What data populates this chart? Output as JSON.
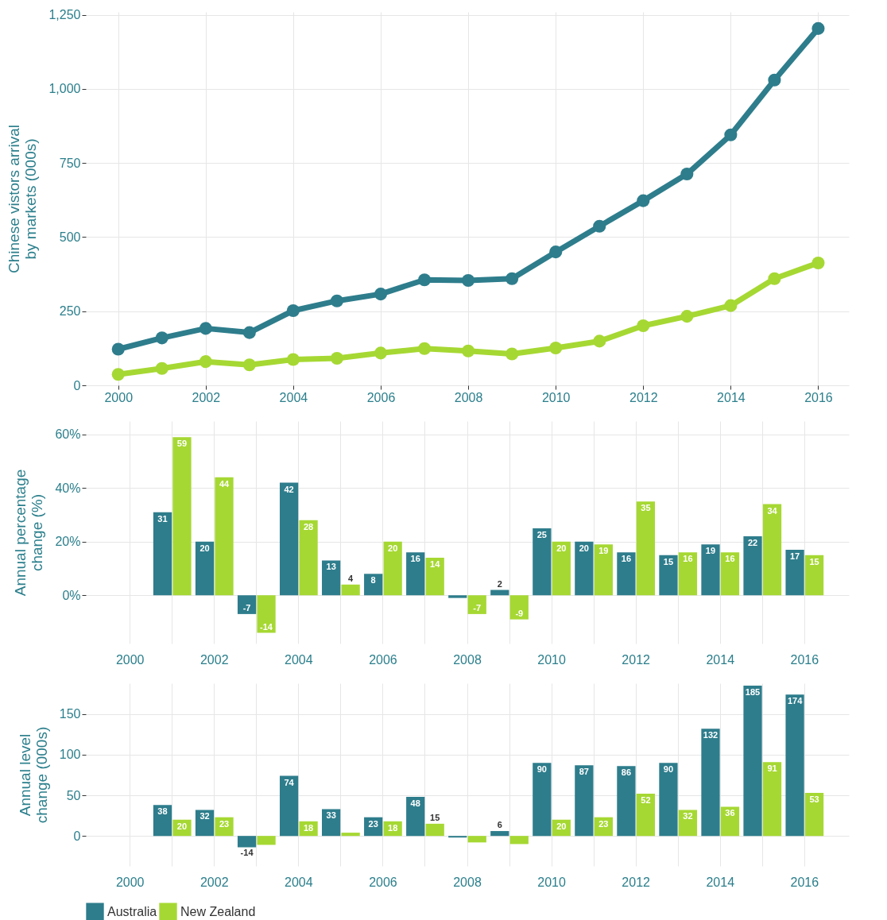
{
  "chart_data": [
    {
      "type": "line",
      "ylabel": "Chinese vistors arrival\nby markets (000s)",
      "x": [
        2000,
        2001,
        2002,
        2003,
        2004,
        2005,
        2006,
        2007,
        2008,
        2009,
        2010,
        2011,
        2012,
        2013,
        2014,
        2015,
        2016
      ],
      "series": [
        {
          "name": "Australia",
          "color": "#2e7d8c",
          "values": [
            122,
            160,
            192,
            178,
            252,
            285,
            308,
            356,
            354,
            360,
            450,
            537,
            623,
            713,
            845,
            1030,
            1204
          ]
        },
        {
          "name": "New Zealand",
          "color": "#a6d833",
          "values": [
            37,
            57,
            80,
            69,
            87,
            91,
            109,
            124,
            116,
            106,
            126,
            149,
            201,
            233,
            269,
            360,
            413
          ]
        }
      ],
      "xlim": [
        1999.26,
        2016.7
      ],
      "xticks": [
        2000,
        2002,
        2004,
        2006,
        2008,
        2010,
        2012,
        2014,
        2016
      ],
      "ylim": [
        0,
        1260
      ],
      "yticks": [
        0,
        {
          "value": 250,
          "label": "250"
        },
        {
          "value": 500,
          "label": "500"
        },
        {
          "value": 750,
          "label": "750"
        },
        {
          "value": 1000,
          "label": "1,000"
        },
        {
          "value": 1250,
          "label": "1,250"
        }
      ],
      "grid": true,
      "marker": "circle",
      "line_style": "solid",
      "legend": "bottom"
    },
    {
      "type": "bar",
      "ylabel": "Annual percentage\nchange (%)",
      "categories": [
        "2000",
        null,
        "2002",
        null,
        "2004",
        null,
        "2006",
        null,
        "2008",
        null,
        "2010",
        null,
        "2012",
        null,
        "2014",
        null,
        "2016"
      ],
      "series": [
        {
          "name": "Australia",
          "color": "#2e7d8c",
          "values": [
            null,
            31,
            20,
            -7,
            42,
            13,
            8,
            16,
            -1,
            2,
            25,
            20,
            16,
            15,
            19,
            22,
            17
          ],
          "value_labels": [
            null,
            "31",
            "20",
            "-7",
            "42",
            "13",
            "8",
            "16",
            null,
            "2",
            "25",
            "20",
            "16",
            "15",
            "19",
            "22",
            "17"
          ]
        },
        {
          "name": "New Zealand",
          "color": "#a6d833",
          "values": [
            null,
            59,
            44,
            -14,
            28,
            4,
            20,
            14,
            -7,
            -9,
            20,
            19,
            35,
            16,
            16,
            34,
            15
          ],
          "value_labels": [
            null,
            "59",
            "44",
            "-14",
            "28",
            "4",
            "20",
            "14",
            "-7",
            "-9",
            "20",
            "19",
            "35",
            "16",
            "16",
            "34",
            "15"
          ]
        }
      ],
      "ylim": [
        -18,
        65
      ],
      "yticks": [
        {
          "value": 0,
          "label": "0%"
        },
        {
          "value": 20,
          "label": "20%"
        },
        {
          "value": 40,
          "label": "40%"
        },
        {
          "value": 60,
          "label": "60%"
        }
      ],
      "grid": true,
      "legend": "bottom"
    },
    {
      "type": "bar",
      "ylabel": "Annual level\nchange (000s)",
      "categories": [
        "2000",
        null,
        "2002",
        null,
        "2004",
        null,
        "2006",
        null,
        "2008",
        null,
        "2010",
        null,
        "2012",
        null,
        "2014",
        null,
        "2016"
      ],
      "series": [
        {
          "name": "Australia",
          "color": "#2e7d8c",
          "values": [
            null,
            38,
            32,
            -14,
            74,
            33,
            23,
            48,
            -2,
            6,
            90,
            87,
            86,
            90,
            132,
            185,
            174
          ],
          "value_labels": [
            null,
            "38",
            "32",
            "-14",
            "74",
            "33",
            "23",
            "48",
            null,
            "6",
            "90",
            "87",
            "86",
            "90",
            "132",
            "185",
            "174"
          ]
        },
        {
          "name": "New Zealand",
          "color": "#a6d833",
          "values": [
            null,
            20,
            23,
            -11,
            18,
            4,
            18,
            15,
            -8,
            -10,
            20,
            23,
            52,
            32,
            36,
            91,
            53
          ],
          "value_labels": [
            null,
            "20",
            "23",
            null,
            "18",
            null,
            "18",
            "15",
            null,
            null,
            "20",
            "23",
            "52",
            "32",
            "36",
            "91",
            "53"
          ]
        }
      ],
      "ylim": [
        -37,
        188
      ],
      "yticks": [
        0,
        50,
        100,
        150
      ],
      "grid": true,
      "legend": "bottom"
    }
  ]
}
